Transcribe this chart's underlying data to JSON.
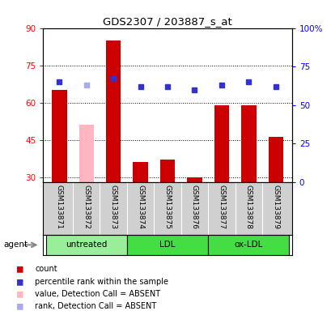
{
  "title": "GDS2307 / 203887_s_at",
  "samples": [
    "GSM133871",
    "GSM133872",
    "GSM133873",
    "GSM133874",
    "GSM133875",
    "GSM133876",
    "GSM133877",
    "GSM133878",
    "GSM133879"
  ],
  "bar_values": [
    65,
    51,
    85,
    36,
    37,
    30,
    59,
    59,
    46
  ],
  "bar_colors": [
    "#cc0000",
    "#ffb6c1",
    "#cc0000",
    "#cc0000",
    "#cc0000",
    "#cc0000",
    "#cc0000",
    "#cc0000",
    "#cc0000"
  ],
  "rank_vals_pct": [
    65,
    63,
    67,
    62,
    62,
    60,
    63,
    65,
    62
  ],
  "rank_colors": [
    "#3333cc",
    "#aaaaee",
    "#3333cc",
    "#3333cc",
    "#3333cc",
    "#3333cc",
    "#3333cc",
    "#3333cc",
    "#3333cc"
  ],
  "ylim_left": [
    28,
    90
  ],
  "ylim_right": [
    0,
    100
  ],
  "yticks_left": [
    30,
    45,
    60,
    75,
    90
  ],
  "yticks_right": [
    0,
    25,
    50,
    75,
    100
  ],
  "ytick_labels_right": [
    "0",
    "25",
    "50",
    "75",
    "100%"
  ],
  "groups": [
    {
      "label": "untreated",
      "start": 0,
      "end": 2,
      "color": "#99ee99"
    },
    {
      "label": "LDL",
      "start": 3,
      "end": 5,
      "color": "#44dd44"
    },
    {
      "label": "ox-LDL",
      "start": 6,
      "end": 8,
      "color": "#44dd44"
    }
  ],
  "agent_label": "agent",
  "legend_items": [
    {
      "label": "count",
      "color": "#cc0000"
    },
    {
      "label": "percentile rank within the sample",
      "color": "#3333cc"
    },
    {
      "label": "value, Detection Call = ABSENT",
      "color": "#ffb6c1"
    },
    {
      "label": "rank, Detection Call = ABSENT",
      "color": "#aaaaee"
    }
  ],
  "plot_bg_color": "#ffffff",
  "sample_bg_color": "#d0d0d0"
}
